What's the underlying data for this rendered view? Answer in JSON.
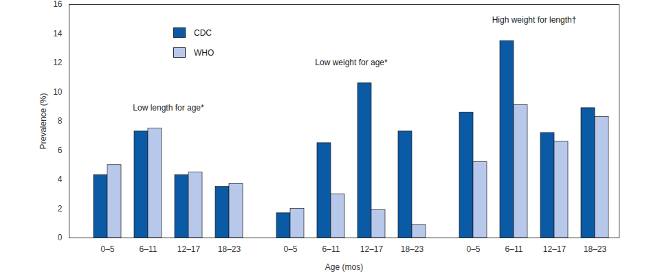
{
  "chart_data": {
    "type": "bar",
    "x_label": "Age (mos)",
    "y_label": "Prevalence (%)",
    "categories": [
      "0–5",
      "6–11",
      "12–17",
      "18–23"
    ],
    "groups": [
      "Low length for age*",
      "Low weight for age*",
      "High weight for length†"
    ],
    "series": [
      {
        "name": "CDC",
        "color": "#0b5aa5",
        "values": [
          [
            4.3,
            7.3,
            4.3,
            3.5
          ],
          [
            1.7,
            6.5,
            10.6,
            7.3
          ],
          [
            8.6,
            13.5,
            7.2,
            8.9
          ]
        ]
      },
      {
        "name": "WHO",
        "color": "#b8c8ea",
        "values": [
          [
            5.0,
            7.5,
            4.5,
            3.7
          ],
          [
            2.0,
            3.0,
            1.9,
            0.9
          ],
          [
            5.2,
            9.1,
            6.6,
            8.3
          ]
        ]
      }
    ],
    "ylim": [
      0,
      16
    ],
    "yticks": [
      0,
      2,
      4,
      6,
      8,
      10,
      12,
      14,
      16
    ],
    "grid": false,
    "legend": "top-left"
  }
}
